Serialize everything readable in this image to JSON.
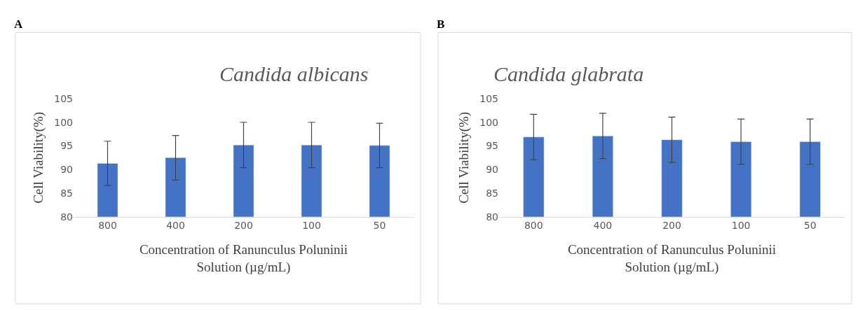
{
  "chart_data": [
    {
      "type": "bar",
      "title": "Candida albicans",
      "xlabel": "Concentration of Ranunculus Poluninii Solution (µg/mL)",
      "ylabel": "Cell Viability(%)",
      "annotations": [
        "A"
      ],
      "categories": [
        "800",
        "400",
        "200",
        "100",
        "50"
      ],
      "values": [
        91.3,
        92.5,
        95.2,
        95.2,
        95.1
      ],
      "errors": [
        4.7,
        4.7,
        4.8,
        4.8,
        4.7
      ],
      "color": "#4472c4",
      "ylim": [
        80,
        105
      ],
      "yticks": [
        80,
        85,
        90,
        95,
        100,
        105
      ],
      "grid": false
    },
    {
      "type": "bar",
      "title": "Candida glabrata",
      "xlabel": "Concentration of Ranunculus Poluninii Solution (µg/mL)",
      "ylabel": "Cell Viability(%)",
      "annotations": [
        "B"
      ],
      "categories": [
        "800",
        "400",
        "200",
        "100",
        "50"
      ],
      "values": [
        96.9,
        97.1,
        96.3,
        95.9,
        95.9
      ],
      "errors": [
        4.8,
        4.8,
        4.8,
        4.8,
        4.8
      ],
      "color": "#4472c4",
      "ylim": [
        80,
        105
      ],
      "yticks": [
        80,
        85,
        90,
        95,
        100,
        105
      ],
      "grid": false
    }
  ]
}
